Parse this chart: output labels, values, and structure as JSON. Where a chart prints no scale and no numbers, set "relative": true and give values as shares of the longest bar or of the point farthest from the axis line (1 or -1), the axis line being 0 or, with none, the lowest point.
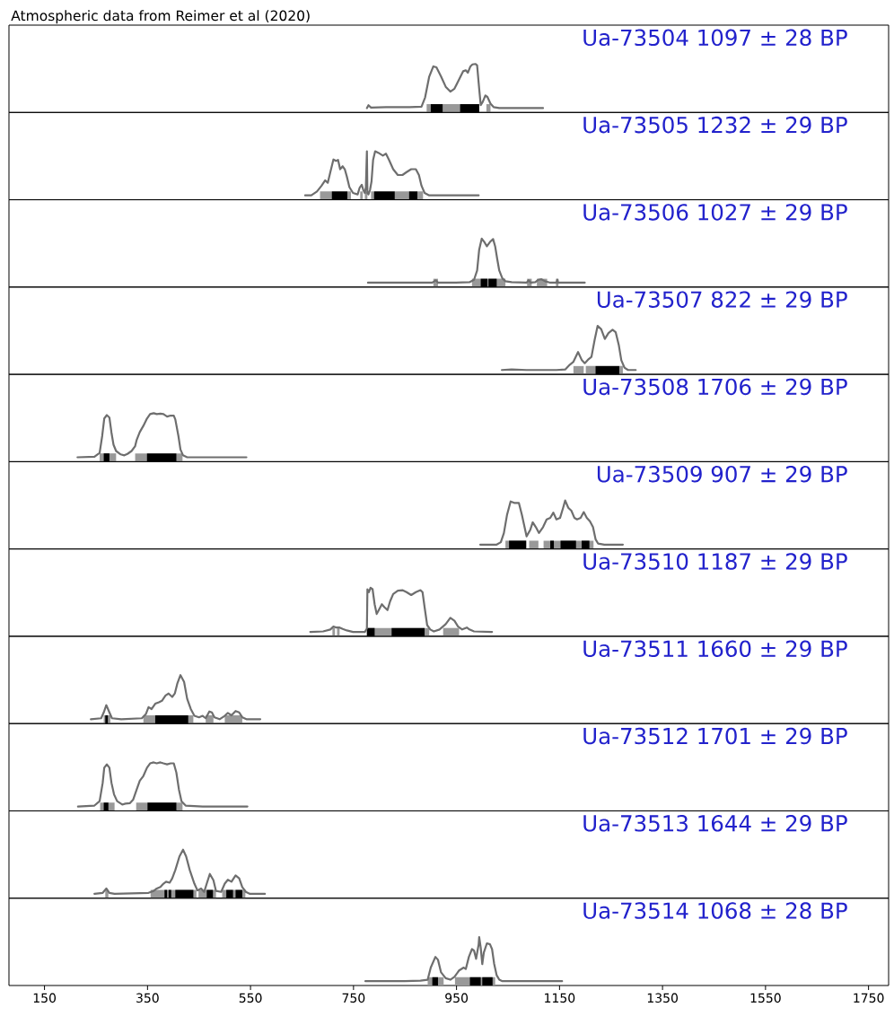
{
  "chart_data": [
    {
      "type": "line",
      "title": "Ua-73504 1097 ± 28 BP",
      "annotations": [
        "Atmospheric data from Reimer et al (2020)"
      ],
      "relative": true,
      "xlim": [
        81,
        1789
      ],
      "tick_labels": false,
      "color": "#6e6e6e",
      "x": [
        776,
        779,
        784,
        813,
        859,
        882,
        889,
        897,
        905,
        911,
        920,
        929,
        938,
        946,
        955,
        963,
        968,
        972,
        977,
        981,
        987,
        990,
        994,
        997,
        1001,
        1006,
        1010,
        1016,
        1022,
        1033,
        1118
      ],
      "values": [
        0.09,
        0.15,
        0.1,
        0.11,
        0.11,
        0.12,
        0.31,
        0.74,
        0.95,
        0.93,
        0.74,
        0.53,
        0.43,
        0.49,
        0.68,
        0.85,
        0.87,
        0.82,
        0.95,
        0.99,
        1,
        0.97,
        0.49,
        0.15,
        0.22,
        0.35,
        0.32,
        0.18,
        0.11,
        0.09,
        0.09
      ],
      "bands": [
        {
          "axis": "x",
          "from": 892,
          "to": 994,
          "color": "#999999"
        },
        {
          "axis": "x",
          "from": 1008,
          "to": 1016,
          "color": "#999999"
        },
        {
          "axis": "x",
          "from": 900,
          "to": 923,
          "color": "#000000"
        },
        {
          "axis": "x",
          "from": 957,
          "to": 994,
          "color": "#000000"
        }
      ]
    },
    {
      "type": "line",
      "title": "Ua-73505 1232 ± 29 BP",
      "relative": true,
      "xlim": [
        81,
        1789
      ],
      "tick_labels": false,
      "color": "#6e6e6e",
      "x": [
        656,
        668,
        679,
        688,
        695,
        700,
        705,
        711,
        716,
        720,
        724,
        729,
        733,
        737,
        742,
        749,
        758,
        762,
        766,
        769,
        772,
        774,
        776,
        777,
        779,
        782,
        785,
        788,
        792,
        798,
        807,
        813,
        819,
        827,
        836,
        845,
        853,
        862,
        871,
        877,
        882,
        888,
        897,
        929,
        993
      ],
      "values": [
        0.09,
        0.09,
        0.17,
        0.29,
        0.4,
        0.35,
        0.57,
        0.83,
        0.8,
        0.82,
        0.63,
        0.69,
        0.63,
        0.48,
        0.26,
        0.14,
        0.11,
        0.25,
        0.31,
        0.2,
        0.14,
        0.26,
        1,
        0.14,
        0.11,
        0.2,
        0.38,
        0.82,
        1,
        0.97,
        0.91,
        0.95,
        0.82,
        0.63,
        0.51,
        0.51,
        0.57,
        0.63,
        0.63,
        0.51,
        0.29,
        0.14,
        0.09,
        0.09,
        0.09
      ],
      "bands": [
        {
          "axis": "x",
          "from": 685,
          "to": 745,
          "color": "#999999"
        },
        {
          "axis": "x",
          "from": 763,
          "to": 768,
          "color": "#999999"
        },
        {
          "axis": "x",
          "from": 772,
          "to": 777,
          "color": "#999999"
        },
        {
          "axis": "x",
          "from": 784,
          "to": 885,
          "color": "#999999"
        },
        {
          "axis": "x",
          "from": 708,
          "to": 738,
          "color": "#000000"
        },
        {
          "axis": "x",
          "from": 790,
          "to": 830,
          "color": "#000000"
        },
        {
          "axis": "x",
          "from": 858,
          "to": 874,
          "color": "#000000"
        }
      ]
    },
    {
      "type": "line",
      "title": "Ua-73506 1027 ± 29 BP",
      "relative": true,
      "xlim": [
        81,
        1789
      ],
      "tick_labels": false,
      "color": "#6e6e6e",
      "x": [
        778,
        813,
        871,
        903,
        907,
        910,
        914,
        941,
        975,
        984,
        990,
        994,
        999,
        1004,
        1009,
        1015,
        1021,
        1025,
        1029,
        1033,
        1039,
        1045,
        1057,
        1086,
        1090,
        1094,
        1103,
        1109,
        1115,
        1122,
        1132,
        1144,
        1146,
        1147,
        1161,
        1199
      ],
      "values": [
        0.09,
        0.09,
        0.09,
        0.09,
        0.12,
        0.14,
        0.09,
        0.09,
        0.1,
        0.15,
        0.34,
        0.77,
        1,
        0.93,
        0.84,
        0.93,
        0.99,
        0.84,
        0.58,
        0.34,
        0.18,
        0.12,
        0.1,
        0.09,
        0.14,
        0.09,
        0.1,
        0.15,
        0.16,
        0.12,
        0.09,
        0.09,
        0.15,
        0.09,
        0.09,
        0.09
      ],
      "bands": [
        {
          "axis": "x",
          "from": 905,
          "to": 914,
          "color": "#999999"
        },
        {
          "axis": "x",
          "from": 980,
          "to": 1045,
          "color": "#999999"
        },
        {
          "axis": "x",
          "from": 1087,
          "to": 1096,
          "color": "#999999"
        },
        {
          "axis": "x",
          "from": 1106,
          "to": 1126,
          "color": "#999999"
        },
        {
          "axis": "x",
          "from": 1143,
          "to": 1148,
          "color": "#999999"
        },
        {
          "axis": "x",
          "from": 997,
          "to": 1010,
          "color": "#000000"
        },
        {
          "axis": "x",
          "from": 1012,
          "to": 1028,
          "color": "#000000"
        }
      ]
    },
    {
      "type": "line",
      "title": "Ua-73507 822 ± 29 BP",
      "relative": true,
      "xlim": [
        81,
        1789
      ],
      "tick_labels": false,
      "color": "#6e6e6e",
      "x": [
        1038,
        1057,
        1086,
        1144,
        1161,
        1170,
        1177,
        1186,
        1193,
        1199,
        1205,
        1212,
        1218,
        1224,
        1231,
        1238,
        1245,
        1253,
        1259,
        1265,
        1270,
        1276,
        1283,
        1298
      ],
      "values": [
        0.09,
        0.1,
        0.09,
        0.09,
        0.1,
        0.2,
        0.26,
        0.46,
        0.3,
        0.23,
        0.3,
        0.36,
        0.7,
        1,
        0.93,
        0.73,
        0.85,
        0.92,
        0.87,
        0.61,
        0.29,
        0.14,
        0.09,
        0.09
      ],
      "bands": [
        {
          "axis": "x",
          "from": 1177,
          "to": 1197,
          "color": "#999999"
        },
        {
          "axis": "x",
          "from": 1201,
          "to": 1273,
          "color": "#999999"
        },
        {
          "axis": "x",
          "from": 1220,
          "to": 1266,
          "color": "#000000"
        }
      ]
    },
    {
      "type": "line",
      "title": "Ua-73508 1706 ± 29 BP",
      "relative": true,
      "xlim": [
        81,
        1789
      ],
      "tick_labels": false,
      "color": "#6e6e6e",
      "x": [
        214,
        247,
        257,
        262,
        266,
        271,
        276,
        280,
        284,
        289,
        298,
        305,
        311,
        319,
        326,
        329,
        335,
        342,
        349,
        355,
        362,
        368,
        375,
        381,
        388,
        395,
        401,
        404,
        410,
        414,
        419,
        427,
        457,
        542
      ],
      "values": [
        0.09,
        0.1,
        0.18,
        0.53,
        0.89,
        0.96,
        0.91,
        0.6,
        0.35,
        0.22,
        0.15,
        0.13,
        0.16,
        0.22,
        0.32,
        0.45,
        0.61,
        0.74,
        0.89,
        0.98,
        1,
        0.98,
        0.99,
        0.98,
        0.93,
        0.95,
        0.95,
        0.87,
        0.53,
        0.25,
        0.13,
        0.09,
        0.09,
        0.09
      ],
      "bands": [
        {
          "axis": "x",
          "from": 257,
          "to": 289,
          "color": "#999999"
        },
        {
          "axis": "x",
          "from": 326,
          "to": 418,
          "color": "#999999"
        },
        {
          "axis": "x",
          "from": 265,
          "to": 276,
          "color": "#000000"
        },
        {
          "axis": "x",
          "from": 349,
          "to": 406,
          "color": "#000000"
        }
      ]
    },
    {
      "type": "line",
      "title": "Ua-73509 907 ± 29 BP",
      "relative": true,
      "xlim": [
        81,
        1789
      ],
      "tick_labels": false,
      "color": "#6e6e6e",
      "x": [
        996,
        1028,
        1036,
        1042,
        1048,
        1055,
        1062,
        1071,
        1077,
        1086,
        1093,
        1098,
        1104,
        1110,
        1118,
        1125,
        1132,
        1138,
        1144,
        1151,
        1157,
        1161,
        1167,
        1173,
        1179,
        1184,
        1191,
        1197,
        1203,
        1209,
        1215,
        1220,
        1225,
        1237,
        1273
      ],
      "values": [
        0.09,
        0.09,
        0.14,
        0.33,
        0.7,
        0.98,
        0.95,
        0.95,
        0.7,
        0.26,
        0.39,
        0.55,
        0.45,
        0.33,
        0.45,
        0.61,
        0.64,
        0.75,
        0.61,
        0.64,
        0.85,
        1,
        0.85,
        0.79,
        0.64,
        0.61,
        0.64,
        0.76,
        0.64,
        0.57,
        0.45,
        0.2,
        0.11,
        0.09,
        0.09
      ],
      "bands": [
        {
          "axis": "x",
          "from": 1045,
          "to": 1086,
          "color": "#999999"
        },
        {
          "axis": "x",
          "from": 1091,
          "to": 1109,
          "color": "#999999"
        },
        {
          "axis": "x",
          "from": 1119,
          "to": 1216,
          "color": "#999999"
        },
        {
          "axis": "x",
          "from": 1052,
          "to": 1085,
          "color": "#000000"
        },
        {
          "axis": "x",
          "from": 1132,
          "to": 1139,
          "color": "#000000"
        },
        {
          "axis": "x",
          "from": 1152,
          "to": 1182,
          "color": "#000000"
        },
        {
          "axis": "x",
          "from": 1193,
          "to": 1208,
          "color": "#000000"
        }
      ]
    },
    {
      "type": "line",
      "title": "Ua-73510 1187 ± 29 BP",
      "relative": true,
      "xlim": [
        81,
        1789
      ],
      "tick_labels": false,
      "color": "#6e6e6e",
      "x": [
        666,
        691,
        705,
        711,
        717,
        723,
        729,
        737,
        749,
        772,
        776,
        777,
        780,
        783,
        787,
        791,
        795,
        800,
        805,
        810,
        816,
        821,
        827,
        836,
        845,
        853,
        862,
        871,
        880,
        884,
        888,
        893,
        899,
        906,
        917,
        929,
        938,
        946,
        953,
        961,
        970,
        975,
        984,
        1019
      ],
      "values": [
        0.09,
        0.1,
        0.14,
        0.2,
        0.18,
        0.18,
        0.15,
        0.12,
        0.09,
        0.09,
        0.16,
        0.97,
        0.91,
        1,
        0.97,
        0.66,
        0.46,
        0.56,
        0.66,
        0.6,
        0.54,
        0.72,
        0.87,
        0.94,
        0.95,
        0.91,
        0.85,
        0.91,
        0.95,
        0.91,
        0.6,
        0.23,
        0.14,
        0.1,
        0.14,
        0.25,
        0.38,
        0.32,
        0.2,
        0.14,
        0.18,
        0.14,
        0.1,
        0.09
      ],
      "bands": [
        {
          "axis": "x",
          "from": 709,
          "to": 714,
          "color": "#999999"
        },
        {
          "axis": "x",
          "from": 718,
          "to": 723,
          "color": "#999999"
        },
        {
          "axis": "x",
          "from": 776,
          "to": 897,
          "color": "#999999"
        },
        {
          "axis": "x",
          "from": 924,
          "to": 955,
          "color": "#999999"
        },
        {
          "axis": "x",
          "from": 776,
          "to": 791,
          "color": "#000000"
        },
        {
          "axis": "x",
          "from": 824,
          "to": 888,
          "color": "#000000"
        }
      ]
    },
    {
      "type": "line",
      "title": "Ua-73511 1660 ± 29 BP",
      "relative": true,
      "xlim": [
        81,
        1789
      ],
      "tick_labels": false,
      "color": "#6e6e6e",
      "x": [
        240,
        260,
        265,
        270,
        276,
        281,
        299,
        339,
        347,
        352,
        358,
        365,
        372,
        378,
        385,
        391,
        398,
        403,
        408,
        414,
        421,
        427,
        434,
        441,
        450,
        457,
        463,
        470,
        475,
        480,
        490,
        500,
        506,
        513,
        521,
        528,
        534,
        542,
        569
      ],
      "values": [
        0.09,
        0.11,
        0.23,
        0.38,
        0.23,
        0.11,
        0.09,
        0.11,
        0.2,
        0.34,
        0.3,
        0.41,
        0.44,
        0.47,
        0.58,
        0.62,
        0.55,
        0.62,
        0.83,
        1,
        0.86,
        0.51,
        0.3,
        0.16,
        0.13,
        0.16,
        0.11,
        0.25,
        0.23,
        0.13,
        0.09,
        0.16,
        0.22,
        0.17,
        0.26,
        0.23,
        0.13,
        0.09,
        0.09
      ],
      "bands": [
        {
          "axis": "x",
          "from": 265,
          "to": 278,
          "color": "#999999"
        },
        {
          "axis": "x",
          "from": 342,
          "to": 439,
          "color": "#999999"
        },
        {
          "axis": "x",
          "from": 463,
          "to": 478,
          "color": "#999999"
        },
        {
          "axis": "x",
          "from": 500,
          "to": 534,
          "color": "#999999"
        },
        {
          "axis": "x",
          "from": 268,
          "to": 273,
          "color": "#000000"
        },
        {
          "axis": "x",
          "from": 365,
          "to": 429,
          "color": "#000000"
        }
      ]
    },
    {
      "type": "line",
      "title": "Ua-73512 1701 ± 29 BP",
      "relative": true,
      "xlim": [
        81,
        1789
      ],
      "tick_labels": false,
      "color": "#6e6e6e",
      "x": [
        215,
        247,
        257,
        263,
        266,
        271,
        276,
        280,
        285,
        291,
        301,
        307,
        316,
        322,
        329,
        335,
        342,
        349,
        355,
        362,
        368,
        375,
        381,
        388,
        395,
        401,
        406,
        411,
        416,
        424,
        457,
        544
      ],
      "values": [
        0.09,
        0.11,
        0.2,
        0.58,
        0.89,
        0.96,
        0.89,
        0.58,
        0.34,
        0.2,
        0.13,
        0.15,
        0.16,
        0.23,
        0.44,
        0.62,
        0.72,
        0.89,
        0.98,
        1,
        0.98,
        1,
        0.98,
        0.96,
        0.98,
        0.98,
        0.79,
        0.44,
        0.2,
        0.11,
        0.09,
        0.09
      ],
      "bands": [
        {
          "axis": "x",
          "from": 258,
          "to": 286,
          "color": "#999999"
        },
        {
          "axis": "x",
          "from": 328,
          "to": 418,
          "color": "#999999"
        },
        {
          "axis": "x",
          "from": 265,
          "to": 274,
          "color": "#000000"
        },
        {
          "axis": "x",
          "from": 350,
          "to": 406,
          "color": "#000000"
        }
      ]
    },
    {
      "type": "line",
      "title": "Ua-73513 1644 ± 29 BP",
      "relative": true,
      "xlim": [
        81,
        1789
      ],
      "tick_labels": false,
      "color": "#6e6e6e",
      "x": [
        247,
        263,
        270,
        276,
        286,
        352,
        362,
        368,
        375,
        381,
        386,
        393,
        398,
        404,
        412,
        419,
        425,
        432,
        441,
        447,
        454,
        460,
        465,
        471,
        478,
        483,
        493,
        500,
        506,
        513,
        521,
        528,
        534,
        541,
        549,
        578
      ],
      "values": [
        0.09,
        0.11,
        0.2,
        0.11,
        0.09,
        0.11,
        0.15,
        0.2,
        0.23,
        0.3,
        0.34,
        0.32,
        0.41,
        0.58,
        0.86,
        1,
        0.86,
        0.58,
        0.3,
        0.16,
        0.2,
        0.13,
        0.3,
        0.5,
        0.37,
        0.15,
        0.13,
        0.3,
        0.38,
        0.34,
        0.47,
        0.41,
        0.23,
        0.13,
        0.09,
        0.09
      ],
      "bands": [
        {
          "axis": "x",
          "from": 268,
          "to": 274,
          "color": "#999999"
        },
        {
          "axis": "x",
          "from": 356,
          "to": 445,
          "color": "#999999"
        },
        {
          "axis": "x",
          "from": 449,
          "to": 483,
          "color": "#999999"
        },
        {
          "axis": "x",
          "from": 495,
          "to": 540,
          "color": "#999999"
        },
        {
          "axis": "x",
          "from": 383,
          "to": 388,
          "color": "#000000"
        },
        {
          "axis": "x",
          "from": 391,
          "to": 396,
          "color": "#000000"
        },
        {
          "axis": "x",
          "from": 404,
          "to": 439,
          "color": "#000000"
        },
        {
          "axis": "x",
          "from": 465,
          "to": 477,
          "color": "#000000"
        },
        {
          "axis": "x",
          "from": 503,
          "to": 516,
          "color": "#000000"
        },
        {
          "axis": "x",
          "from": 521,
          "to": 534,
          "color": "#000000"
        }
      ]
    },
    {
      "type": "line",
      "title": "Ua-73514 1068 ± 28 BP",
      "relative": true,
      "xlim": [
        81,
        1789
      ],
      "xticks": [
        150,
        350,
        550,
        750,
        950,
        1150,
        1350,
        1550,
        1750
      ],
      "tick_labels": "x",
      "color": "#6e6e6e",
      "x": [
        773,
        850,
        880,
        894,
        900,
        909,
        914,
        920,
        929,
        938,
        946,
        955,
        964,
        968,
        974,
        980,
        984,
        988,
        993,
        994,
        997,
        1000,
        1003,
        1009,
        1015,
        1019,
        1023,
        1028,
        1033,
        1039,
        1060,
        1155
      ],
      "values": [
        0.09,
        0.09,
        0.1,
        0.12,
        0.37,
        0.59,
        0.53,
        0.27,
        0.15,
        0.12,
        0.18,
        0.31,
        0.37,
        0.34,
        0.59,
        0.75,
        0.72,
        0.55,
        0.85,
        1,
        0.78,
        0.44,
        0.68,
        0.87,
        0.85,
        0.75,
        0.45,
        0.21,
        0.12,
        0.09,
        0.09,
        0.09
      ],
      "bands": [
        {
          "axis": "x",
          "from": 894,
          "to": 925,
          "color": "#999999"
        },
        {
          "axis": "x",
          "from": 947,
          "to": 1025,
          "color": "#999999"
        },
        {
          "axis": "x",
          "from": 903,
          "to": 914,
          "color": "#000000"
        },
        {
          "axis": "x",
          "from": 976,
          "to": 997,
          "color": "#000000"
        },
        {
          "axis": "x",
          "from": 1000,
          "to": 1020,
          "color": "#000000"
        }
      ]
    }
  ]
}
